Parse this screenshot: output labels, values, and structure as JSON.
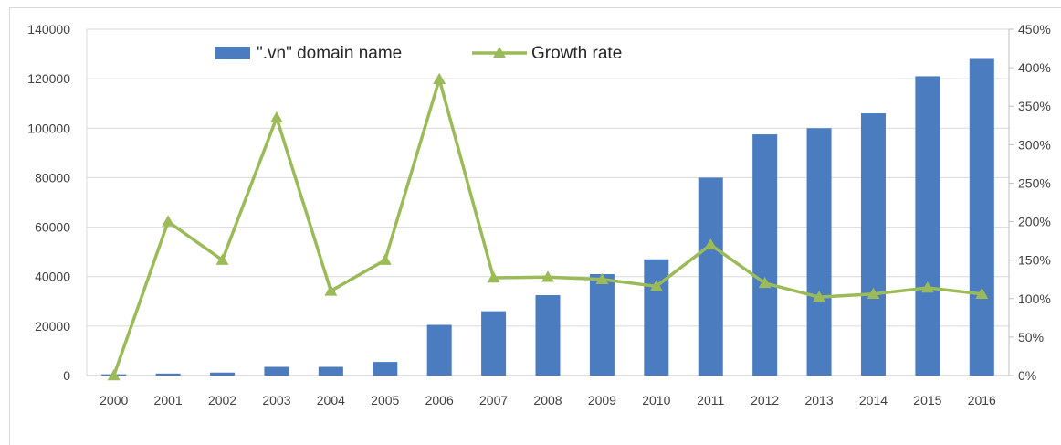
{
  "chart_data": {
    "type": "bar+line",
    "categories": [
      "2000",
      "2001",
      "2002",
      "2003",
      "2004",
      "2005",
      "2006",
      "2007",
      "2008",
      "2009",
      "2010",
      "2011",
      "2012",
      "2013",
      "2014",
      "2015",
      "2016"
    ],
    "series": [
      {
        "name": "\".vn\" domain name",
        "type": "bar",
        "axis": "left",
        "color": "#4a7cbf",
        "values": [
          500,
          800,
          1200,
          3500,
          3500,
          5500,
          20500,
          26000,
          32500,
          41000,
          47000,
          80000,
          97500,
          100000,
          106000,
          121000,
          128000
        ]
      },
      {
        "name": "Growth rate",
        "type": "line",
        "axis": "right",
        "color": "#9bbb59",
        "marker": "triangle",
        "values": [
          0,
          200,
          150,
          335,
          110,
          150,
          385,
          127,
          128,
          125,
          116,
          170,
          120,
          102,
          106,
          114,
          106
        ]
      }
    ],
    "y_left": {
      "ylim": [
        0,
        140000
      ],
      "ticks": [
        "0",
        "20000",
        "40000",
        "60000",
        "80000",
        "100000",
        "120000",
        "140000"
      ]
    },
    "y_right": {
      "ylim": [
        0,
        450
      ],
      "ticks": [
        "0%",
        "50%",
        "100%",
        "150%",
        "200%",
        "250%",
        "300%",
        "350%",
        "400%",
        "450%"
      ]
    },
    "grid": "horizontal",
    "legend": {
      "position": "top-center",
      "items": [
        "\".vn\" domain name",
        "Growth rate"
      ]
    },
    "title": "",
    "xlabel": "",
    "ylabel": ""
  }
}
